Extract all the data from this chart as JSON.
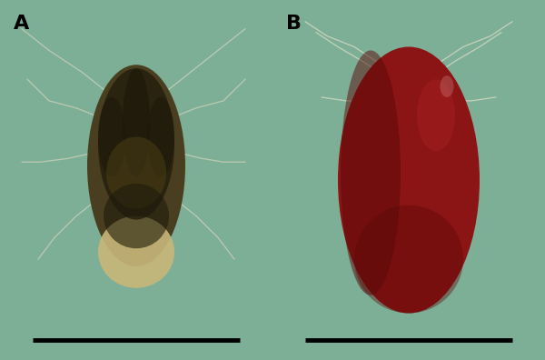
{
  "bg_color": "#7dae96",
  "label_A": "A",
  "label_B": "B",
  "label_color": "#000000",
  "label_fontsize": 16,
  "label_fontweight": "bold",
  "scale_bar_color": "#000000",
  "scale_bar_linewidth": 3.5,
  "tick_body_A_main": "#4a3e20",
  "tick_body_A_dark": "#1e1a0a",
  "tick_body_A_belly": "#c8b87a",
  "tick_body_A_mid": "#302808",
  "tick_body_B_main": "#8b1515",
  "tick_body_B_dark": "#5a0808",
  "leg_color_A": "#b8c8b0",
  "leg_color_B": "#c0d0b8",
  "fig_width": 6.0,
  "fig_height": 3.96,
  "dpi": 100
}
